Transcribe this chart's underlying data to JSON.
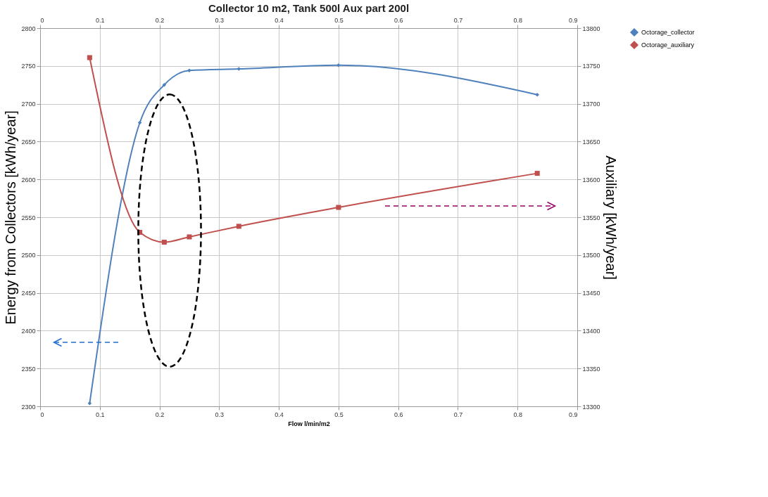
{
  "chart_data": {
    "type": "line",
    "title": "Collector 10 m2, Tank 500l Aux part 200l",
    "xlabel": "Flow l/min/m2",
    "ylabel": "Energy from Collectors [kWh/year]",
    "y2label": "Auxiliary [kWh/year]",
    "x": [
      0.083,
      0.167,
      0.208,
      0.25,
      0.333,
      0.5,
      0.833
    ],
    "series": [
      {
        "name": "Octorage_collector",
        "color": "#4f81bd",
        "marker": "diamond",
        "values": [
          2304,
          2675,
          2725,
          2744,
          2746,
          2751,
          2712
        ]
      },
      {
        "name": "Octorage_auxiliary",
        "color": "#c0504d",
        "marker": "square",
        "axis": "y2",
        "values": [
          13761,
          13530,
          13517,
          13524,
          13538,
          13563,
          13608
        ]
      }
    ],
    "xlim": [
      0,
      0.9
    ],
    "xticks": [
      0,
      0.1,
      0.2,
      0.3,
      0.4,
      0.5,
      0.6,
      0.7,
      0.8,
      0.9
    ],
    "x2lim": [
      0,
      0.9
    ],
    "x2ticks": [
      0,
      0.1,
      0.2,
      0.3,
      0.4,
      0.5,
      0.6,
      0.7,
      0.8,
      0.9
    ],
    "ylim": [
      2300,
      2800
    ],
    "yticks": [
      2300,
      2350,
      2400,
      2450,
      2500,
      2550,
      2600,
      2650,
      2700,
      2750,
      2800
    ],
    "y2lim": [
      13300,
      13800
    ],
    "y2ticks": [
      13300,
      13350,
      13400,
      13450,
      13500,
      13550,
      13600,
      13650,
      13700,
      13750,
      13800
    ],
    "grid": true,
    "legend": "right",
    "line_style": "solid"
  }
}
